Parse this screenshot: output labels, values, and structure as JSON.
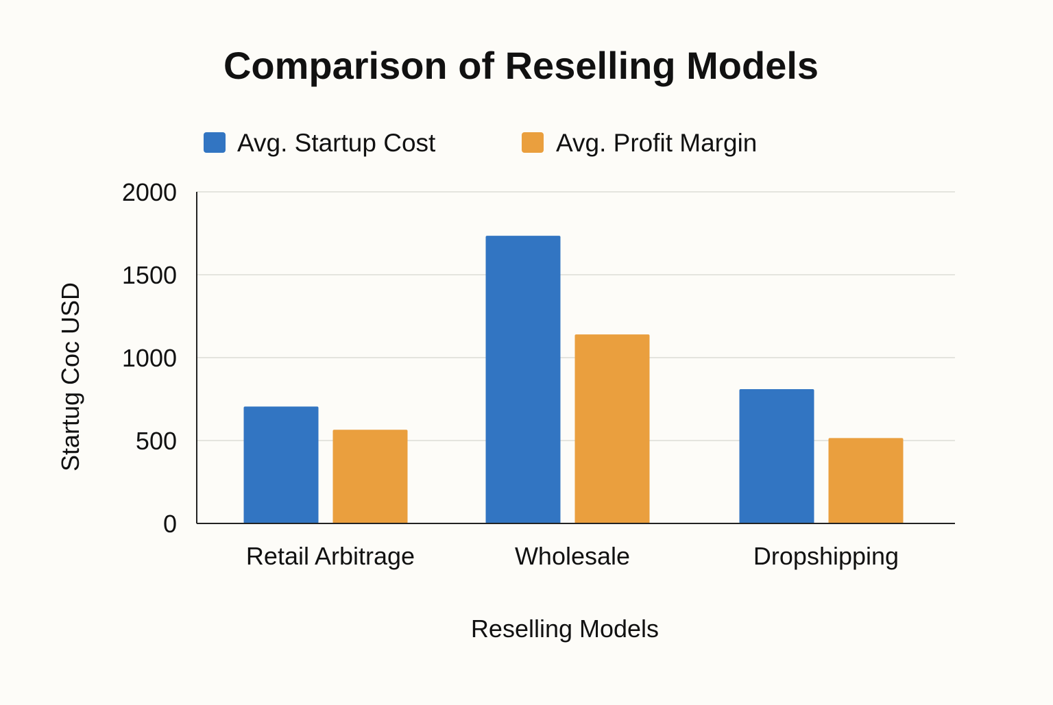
{
  "chart_data": {
    "type": "bar",
    "title": "Comparison of Reselling Models",
    "xlabel": "Reselling Models",
    "ylabel": "Startug Coc USD",
    "categories": [
      "Retail Arbitrage",
      "Wholesale",
      "Dropshipping"
    ],
    "series": [
      {
        "name": "Avg. Startup Cost",
        "color": "#3275c2",
        "values": [
          705,
          1735,
          810
        ]
      },
      {
        "name": "Avg. Profit Margin",
        "color": "#ea9f3e",
        "values": [
          565,
          1140,
          515
        ]
      }
    ],
    "ylim": [
      0,
      2000
    ],
    "yticks": [
      0,
      500,
      1000,
      1500,
      2000
    ],
    "ytick_labels": [
      "0",
      "500",
      "1000",
      "1500",
      "2000"
    ],
    "grid": true,
    "legend_position": "top"
  }
}
